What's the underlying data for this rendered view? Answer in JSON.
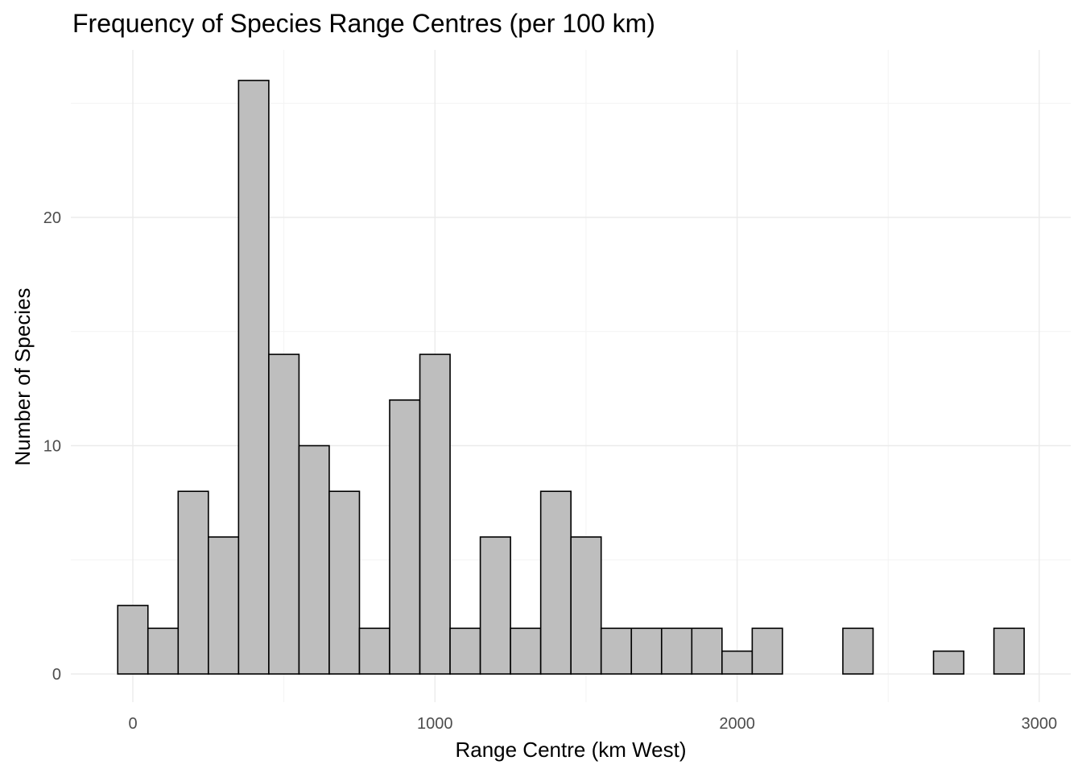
{
  "chart_data": {
    "type": "bar",
    "subtype": "histogram",
    "title": "Frequency of Species Range Centres (per 100 km)",
    "xlabel": "Range Centre (km West)",
    "ylabel": "Number of Species",
    "xlim": [
      -50,
      2950
    ],
    "ylim": [
      0,
      26
    ],
    "x_ticks": [
      0,
      1000,
      2000,
      3000
    ],
    "y_ticks": [
      0,
      10,
      20
    ],
    "bin_width": 100,
    "bins": [
      {
        "start": -50,
        "end": 50,
        "count": 3
      },
      {
        "start": 50,
        "end": 150,
        "count": 2
      },
      {
        "start": 150,
        "end": 250,
        "count": 8
      },
      {
        "start": 250,
        "end": 350,
        "count": 6
      },
      {
        "start": 350,
        "end": 450,
        "count": 26
      },
      {
        "start": 450,
        "end": 550,
        "count": 14
      },
      {
        "start": 550,
        "end": 650,
        "count": 10
      },
      {
        "start": 650,
        "end": 750,
        "count": 8
      },
      {
        "start": 750,
        "end": 850,
        "count": 2
      },
      {
        "start": 850,
        "end": 950,
        "count": 12
      },
      {
        "start": 950,
        "end": 1050,
        "count": 14
      },
      {
        "start": 1050,
        "end": 1150,
        "count": 2
      },
      {
        "start": 1150,
        "end": 1250,
        "count": 6
      },
      {
        "start": 1250,
        "end": 1350,
        "count": 2
      },
      {
        "start": 1350,
        "end": 1450,
        "count": 8
      },
      {
        "start": 1450,
        "end": 1550,
        "count": 6
      },
      {
        "start": 1550,
        "end": 1650,
        "count": 2
      },
      {
        "start": 1650,
        "end": 1750,
        "count": 2
      },
      {
        "start": 1750,
        "end": 1850,
        "count": 2
      },
      {
        "start": 1850,
        "end": 1950,
        "count": 2
      },
      {
        "start": 1950,
        "end": 2050,
        "count": 1
      },
      {
        "start": 2050,
        "end": 2150,
        "count": 2
      },
      {
        "start": 2150,
        "end": 2250,
        "count": 0
      },
      {
        "start": 2250,
        "end": 2350,
        "count": 0
      },
      {
        "start": 2350,
        "end": 2450,
        "count": 2
      },
      {
        "start": 2450,
        "end": 2550,
        "count": 0
      },
      {
        "start": 2550,
        "end": 2650,
        "count": 0
      },
      {
        "start": 2650,
        "end": 2750,
        "count": 1
      },
      {
        "start": 2750,
        "end": 2850,
        "count": 0
      },
      {
        "start": 2850,
        "end": 2950,
        "count": 2
      }
    ],
    "grid": true,
    "legend": "none",
    "bar_fill": "#bebebe",
    "bar_stroke": "#000000"
  }
}
